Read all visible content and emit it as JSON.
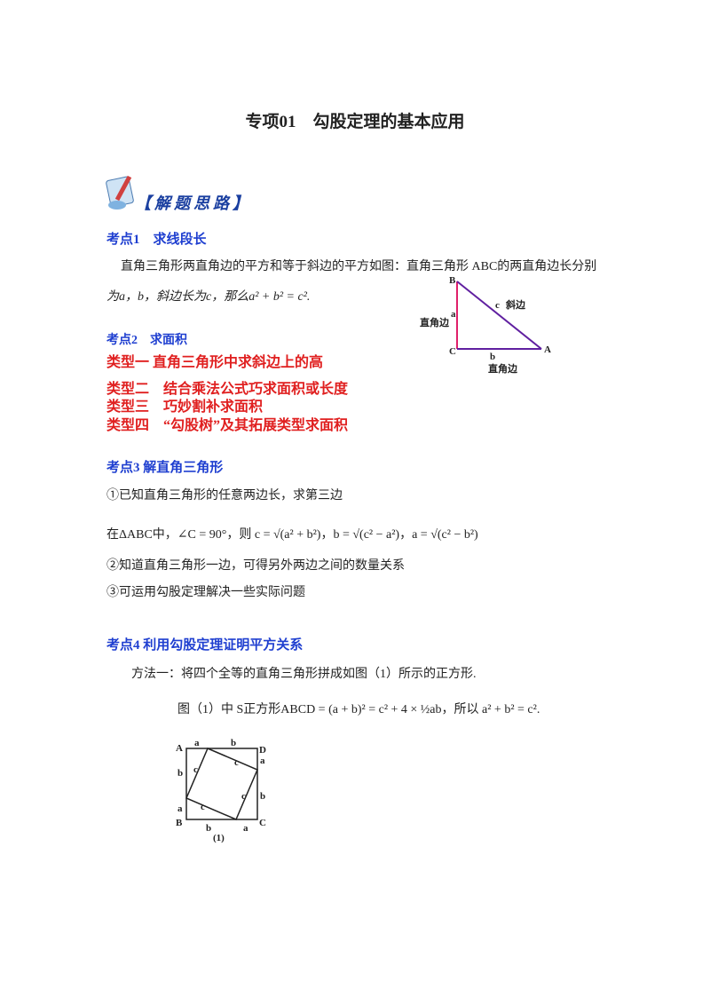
{
  "title": "专项01　勾股定理的基本应用",
  "banner": "【解题思路】",
  "point1": {
    "heading": "考点1　求线段长",
    "text": "直角三角形两直角边的平方和等于斜边的平方如图：直角三角形 ABC的两直角边长分别",
    "formula": "为a，b，斜边长为c，那么a² + b² = c²."
  },
  "triangle": {
    "vertices": [
      "A",
      "B",
      "C"
    ],
    "sides": [
      "a",
      "b",
      "c"
    ],
    "leg_label": "直角边",
    "hyp_label": "斜边"
  },
  "point2": {
    "heading": "考点2　求面积",
    "types": [
      "类型一  直角三角形中求斜边上的高",
      "类型二　结合乘法公式巧求面积或长度",
      "类型三　巧妙割补求面积",
      "类型四　“勾股树”及其拓展类型求面积"
    ]
  },
  "point3": {
    "heading": "考点3  解直角三角形",
    "items": [
      "①已知直角三角形的任意两边长，求第三边",
      "在ΔABC中，∠C = 90°，则 c = √(a² + b²)，b = √(c² − a²)，a = √(c² − b²)",
      "②知道直角三角形一边，可得另外两边之间的数量关系",
      "③可运用勾股定理解决一些实际问题"
    ]
  },
  "point4": {
    "heading": "考点4  利用勾股定理证明平方关系",
    "method": "方法一：将四个全等的直角三角形拼成如图（1）所示的正方形.",
    "formula": "图（1）中 S正方形ABCD = (a + b)² = c² + 4 × ½ab，所以 a² + b² = c²."
  },
  "figure1": {
    "corners": [
      "A",
      "B",
      "C",
      "D"
    ],
    "sides": [
      "a",
      "b",
      "c"
    ],
    "caption": "(1)"
  }
}
